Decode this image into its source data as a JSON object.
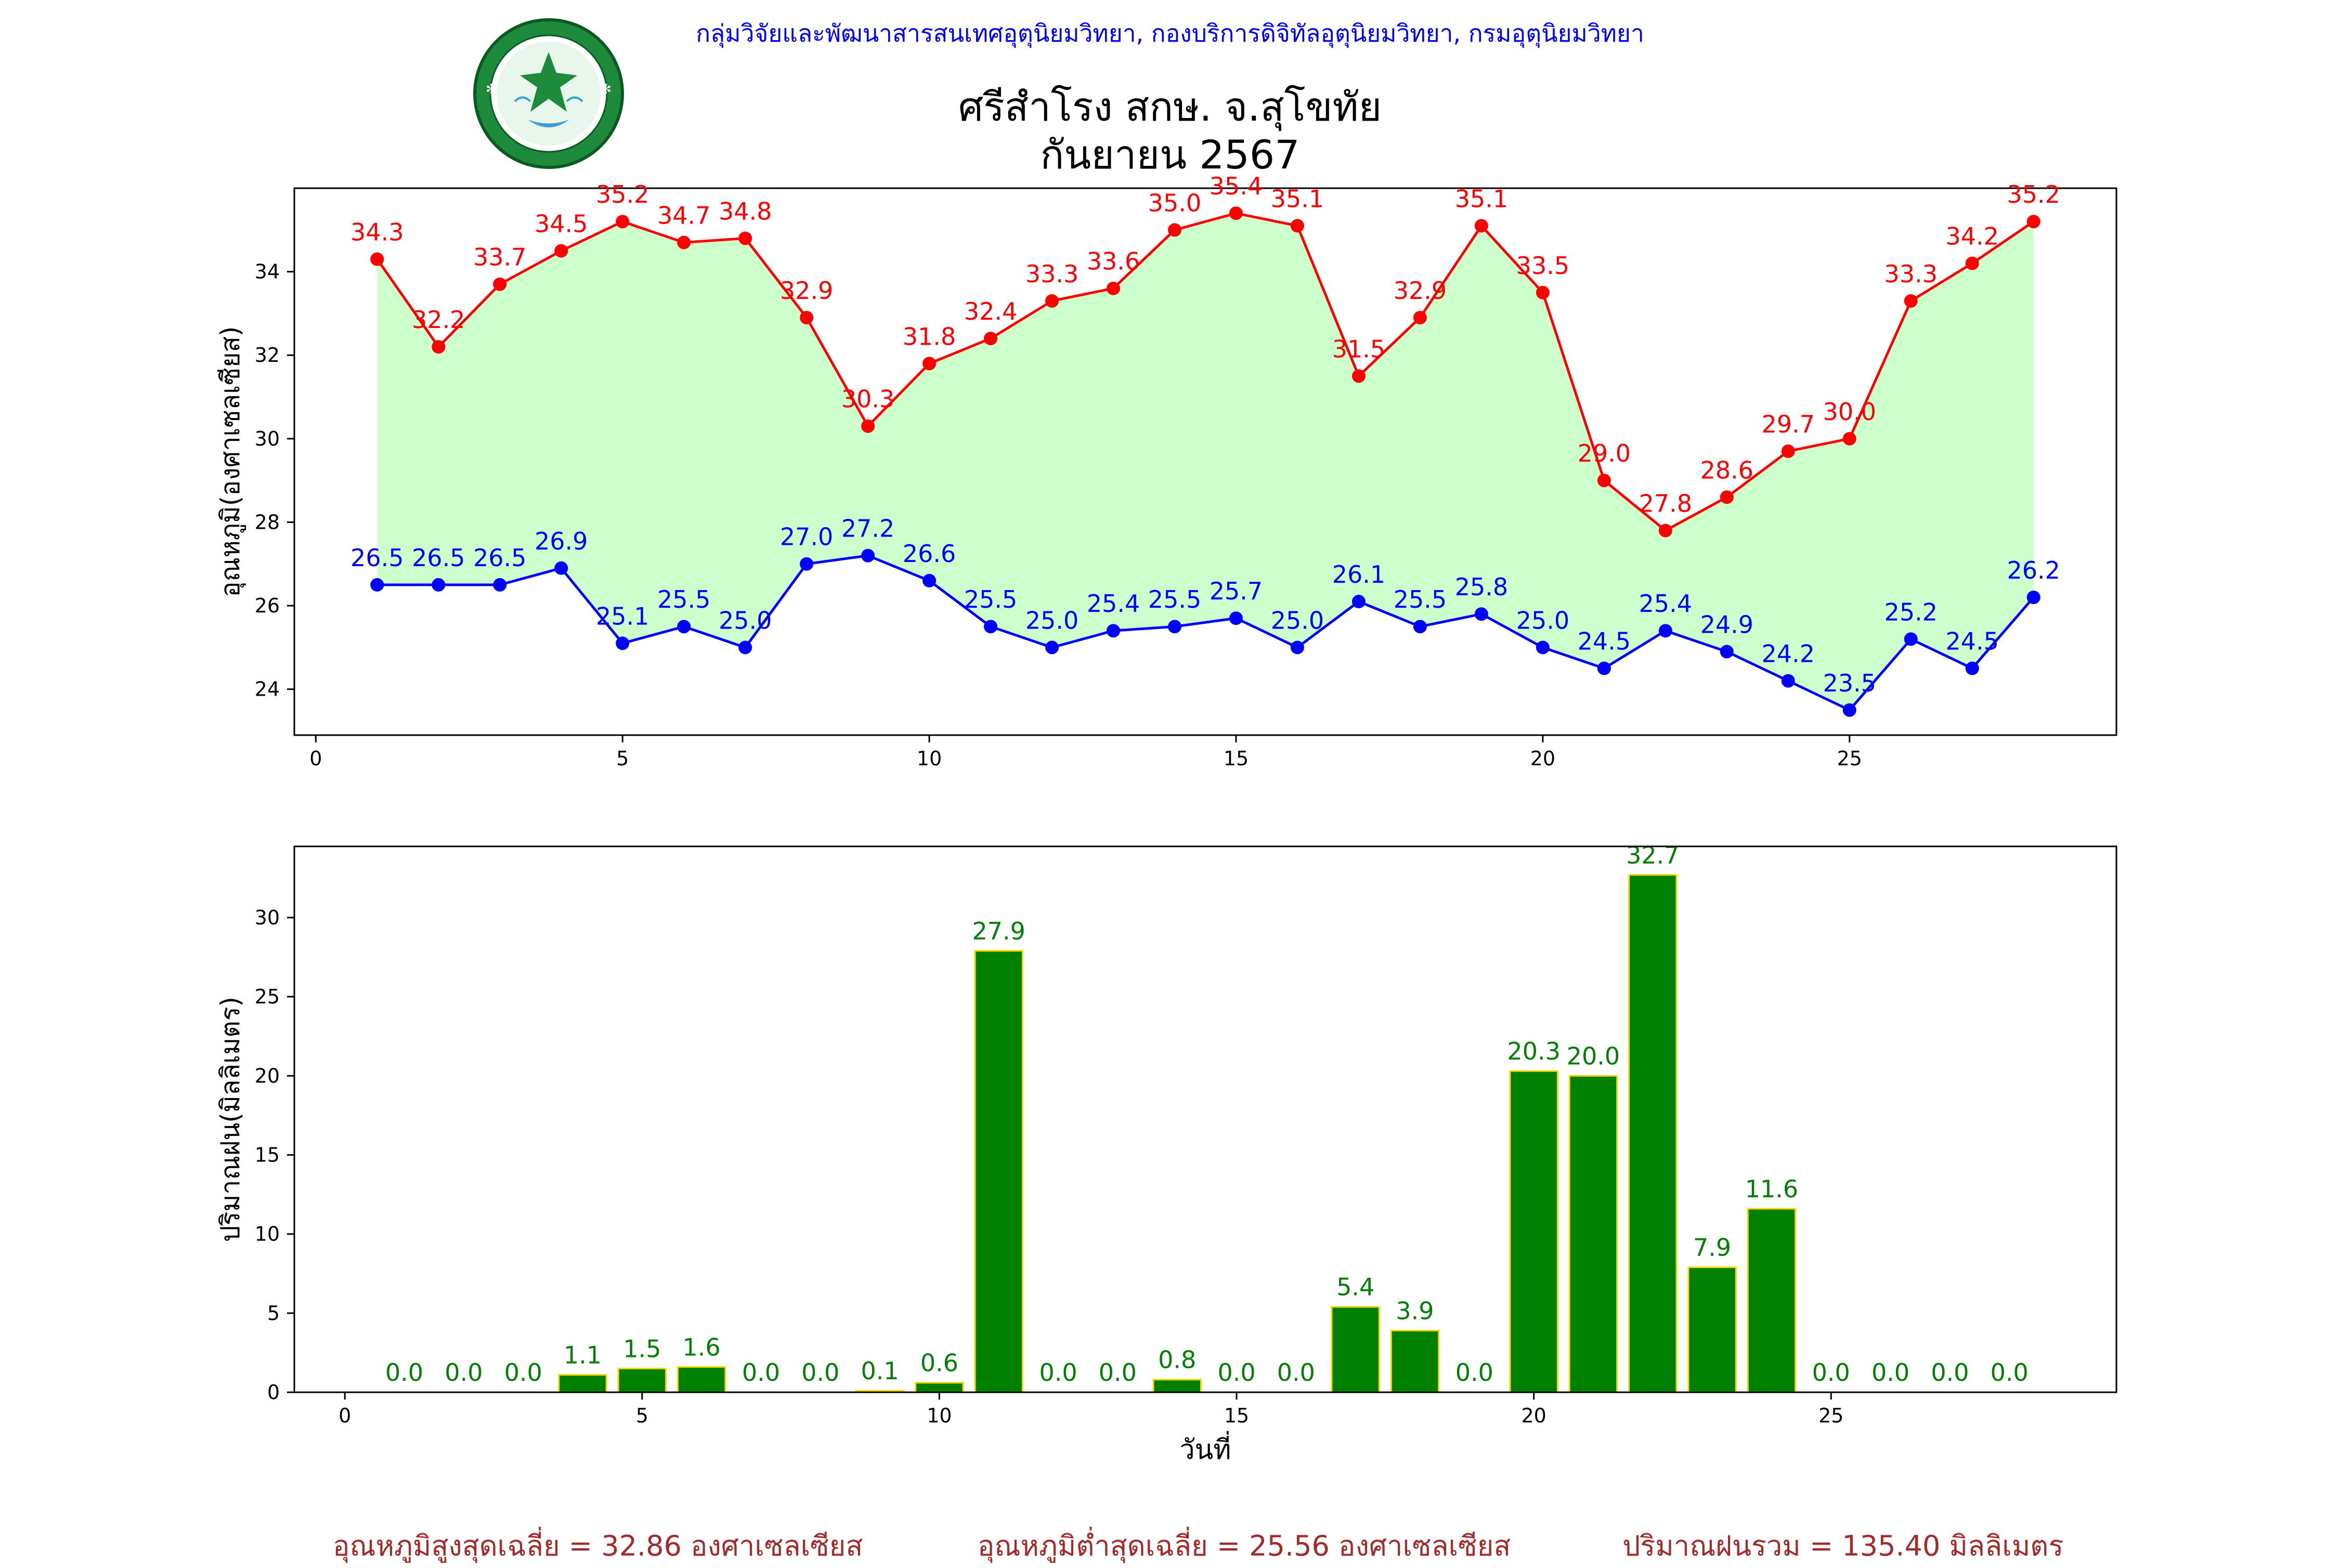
{
  "header": {
    "org_line": "กลุ่มวิจัยและพัฒนาสารสนเทศอุตุนิยมวิทยา, กองบริการดิจิทัลอุตุนิยมวิทยา, กรมอุตุนิยมวิทยา",
    "title_line1": "ศรีสำโรง สกษ. จ.สุโขทัย",
    "title_line2": "กันยายน 2567",
    "logo_text_top": "กรมอุตุนิยมวิทยา",
    "logo_text_bottom": "METEOROLOGICAL DEPARTMENT"
  },
  "chart_data": [
    {
      "type": "line",
      "ylabel": "อุณหภูมิ(องศาเซลเซียส)",
      "xlabel": "",
      "x": [
        1,
        2,
        3,
        4,
        5,
        6,
        7,
        8,
        9,
        10,
        11,
        12,
        13,
        14,
        15,
        16,
        17,
        18,
        19,
        20,
        21,
        22,
        23,
        24,
        25,
        26,
        27,
        28
      ],
      "xlim": [
        -0.35,
        29.35
      ],
      "ylim": [
        22.9,
        36.0
      ],
      "xticks": [
        0,
        5,
        10,
        15,
        20,
        25
      ],
      "yticks": [
        24,
        26,
        28,
        30,
        32,
        34
      ],
      "fill_between": true,
      "series": [
        {
          "key": "max",
          "color": "#ff0000",
          "values": [
            34.3,
            32.2,
            33.7,
            34.5,
            35.2,
            34.7,
            34.8,
            32.9,
            30.3,
            31.8,
            32.4,
            33.3,
            33.6,
            35.0,
            35.4,
            35.1,
            31.5,
            32.9,
            35.1,
            33.5,
            29.0,
            27.8,
            28.6,
            29.7,
            30.0,
            33.3,
            34.2,
            35.2
          ]
        },
        {
          "key": "min",
          "color": "#0000ff",
          "values": [
            26.5,
            26.5,
            26.5,
            26.9,
            25.1,
            25.5,
            25.0,
            27.0,
            27.2,
            26.6,
            25.5,
            25.0,
            25.4,
            25.5,
            25.7,
            25.0,
            26.1,
            25.5,
            25.8,
            25.0,
            24.5,
            25.4,
            24.9,
            24.2,
            23.5,
            25.2,
            24.5,
            26.2
          ]
        }
      ],
      "fill_color": "#ccffcc"
    },
    {
      "type": "bar",
      "ylabel": "ปริมาณฝน(มิลลิเมตร)",
      "xlabel": "วันที่",
      "x": [
        1,
        2,
        3,
        4,
        5,
        6,
        7,
        8,
        9,
        10,
        11,
        12,
        13,
        14,
        15,
        16,
        17,
        18,
        19,
        20,
        21,
        22,
        23,
        24,
        25,
        26,
        27,
        28
      ],
      "values": [
        0.0,
        0.0,
        0.0,
        1.1,
        1.5,
        1.6,
        0.0,
        0.0,
        0.1,
        0.6,
        27.9,
        0.0,
        0.0,
        0.8,
        0.0,
        0.0,
        5.4,
        3.9,
        0.0,
        20.3,
        20.0,
        32.7,
        7.9,
        11.6,
        0.0,
        0.0,
        0.0,
        0.0
      ],
      "xlim": [
        -0.85,
        29.8
      ],
      "ylim": [
        0,
        34.5
      ],
      "xticks": [
        0,
        5,
        10,
        15,
        20,
        25
      ],
      "yticks": [
        0,
        5,
        10,
        15,
        20,
        25,
        30
      ],
      "bar_color": "#008000",
      "edge_color": "#ffd700",
      "label_color": "#008000"
    }
  ],
  "footer": {
    "avg_max": "อุณหภูมิสูงสุดเฉลี่ย = 32.86 องศาเซลเซียส",
    "avg_min": "อุณหภูมิต่ำสุดเฉลี่ย = 25.56 องศาเซลเซียส",
    "rain_total": "ปริมาณฝนรวม = 135.40 มิลลิเมตร"
  }
}
